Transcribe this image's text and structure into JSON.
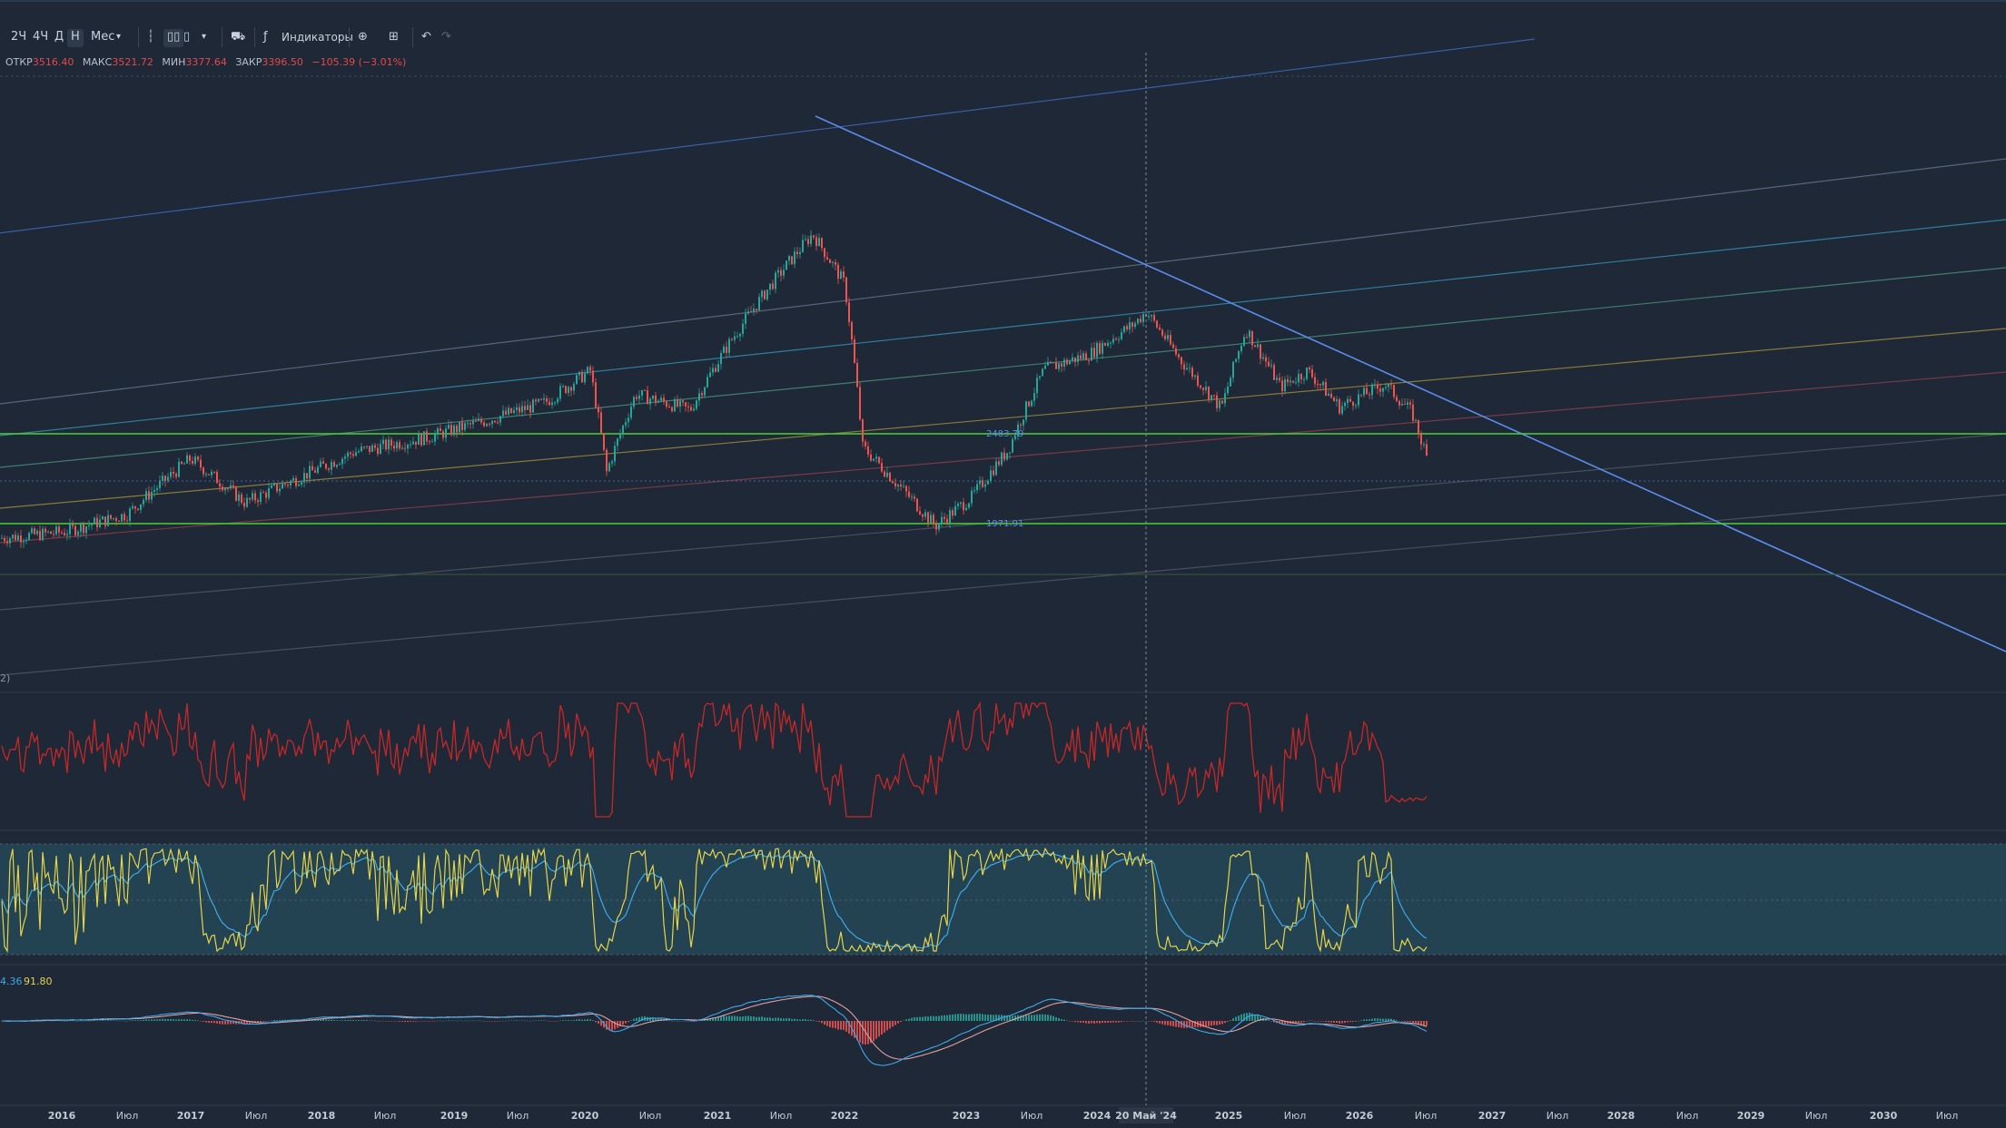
{
  "toolbar": {
    "timeframes": [
      "2Ч",
      "4Ч",
      "Д",
      "Н",
      "Мес"
    ],
    "active_timeframe": "Н",
    "indicators_label": "Индикаторы"
  },
  "ohlc": {
    "open_label": "ОТКР",
    "open": "3516.40",
    "high_label": "МАКС",
    "high": "3521.72",
    "low_label": "МИН",
    "low": "3377.64",
    "close_label": "ЗАКР",
    "close": "3396.50",
    "change": "−105.39 (−3.01%)"
  },
  "price_labels": [
    {
      "text": "2483.79",
      "value": 2483.79
    },
    {
      "text": "1971.91",
      "value": 1971.91
    }
  ],
  "panel_labels": {
    "main_legend_fragment": "2)",
    "macd_values": [
      "4.36",
      "91.80"
    ]
  },
  "x_axis": {
    "labels": [
      "2016",
      "Июл",
      "2017",
      "Июл",
      "2018",
      "Июл",
      "2019",
      "Июл",
      "2020",
      "Июл",
      "2021",
      "Июл",
      "2022",
      "2023",
      "Июл",
      "2024",
      "20 Май '24",
      "2025",
      "Июл",
      "2026",
      "Июл",
      "2027",
      "Июл",
      "2028",
      "Июл",
      "2029",
      "Июл",
      "2030",
      "Июл"
    ],
    "crosshair_label": "20 Май '24"
  },
  "colors": {
    "background": "#1e2836",
    "up": "#26a69a",
    "down": "#ef5350",
    "trend": "#5b8def",
    "support": "#4cd137",
    "rsi": "#c62828",
    "stoch_k": "#e6d44a",
    "stoch_d": "#3fa9e8",
    "stoch_fill": "#24495a",
    "macd": "#dcdcdc",
    "signal": "#e0a0a0"
  },
  "chart_data": {
    "type": "line",
    "instrument_shown": "weekly candlestick price with indicators",
    "price_series": {
      "x": [
        "2015-07",
        "2016-01",
        "2016-07",
        "2017-01",
        "2017-07",
        "2018-01",
        "2018-07",
        "2019-01",
        "2019-07",
        "2020-01",
        "2020-03",
        "2020-07",
        "2021-01",
        "2021-07",
        "2021-10",
        "2022-01",
        "2022-03",
        "2022-07",
        "2022-10",
        "2023-01",
        "2023-07",
        "2024-01",
        "2024-05",
        "2024-08",
        "2025-01",
        "2025-04",
        "2025-07",
        "2026-01",
        "2026-06"
      ],
      "close": [
        1900,
        1950,
        2050,
        2350,
        2100,
        2250,
        2450,
        2550,
        2650,
        3000,
        2300,
        2900,
        3350,
        3900,
        4200,
        3300,
        2600,
        2200,
        2050,
        2450,
        3000,
        3300,
        3400,
        3000,
        3100,
        2650,
        2800,
        2900,
        2300
      ]
    },
    "horizontal_levels": [
      2483.79,
      1971.91
    ],
    "indicators": [
      "RSI",
      "Stochastic",
      "MACD"
    ]
  }
}
